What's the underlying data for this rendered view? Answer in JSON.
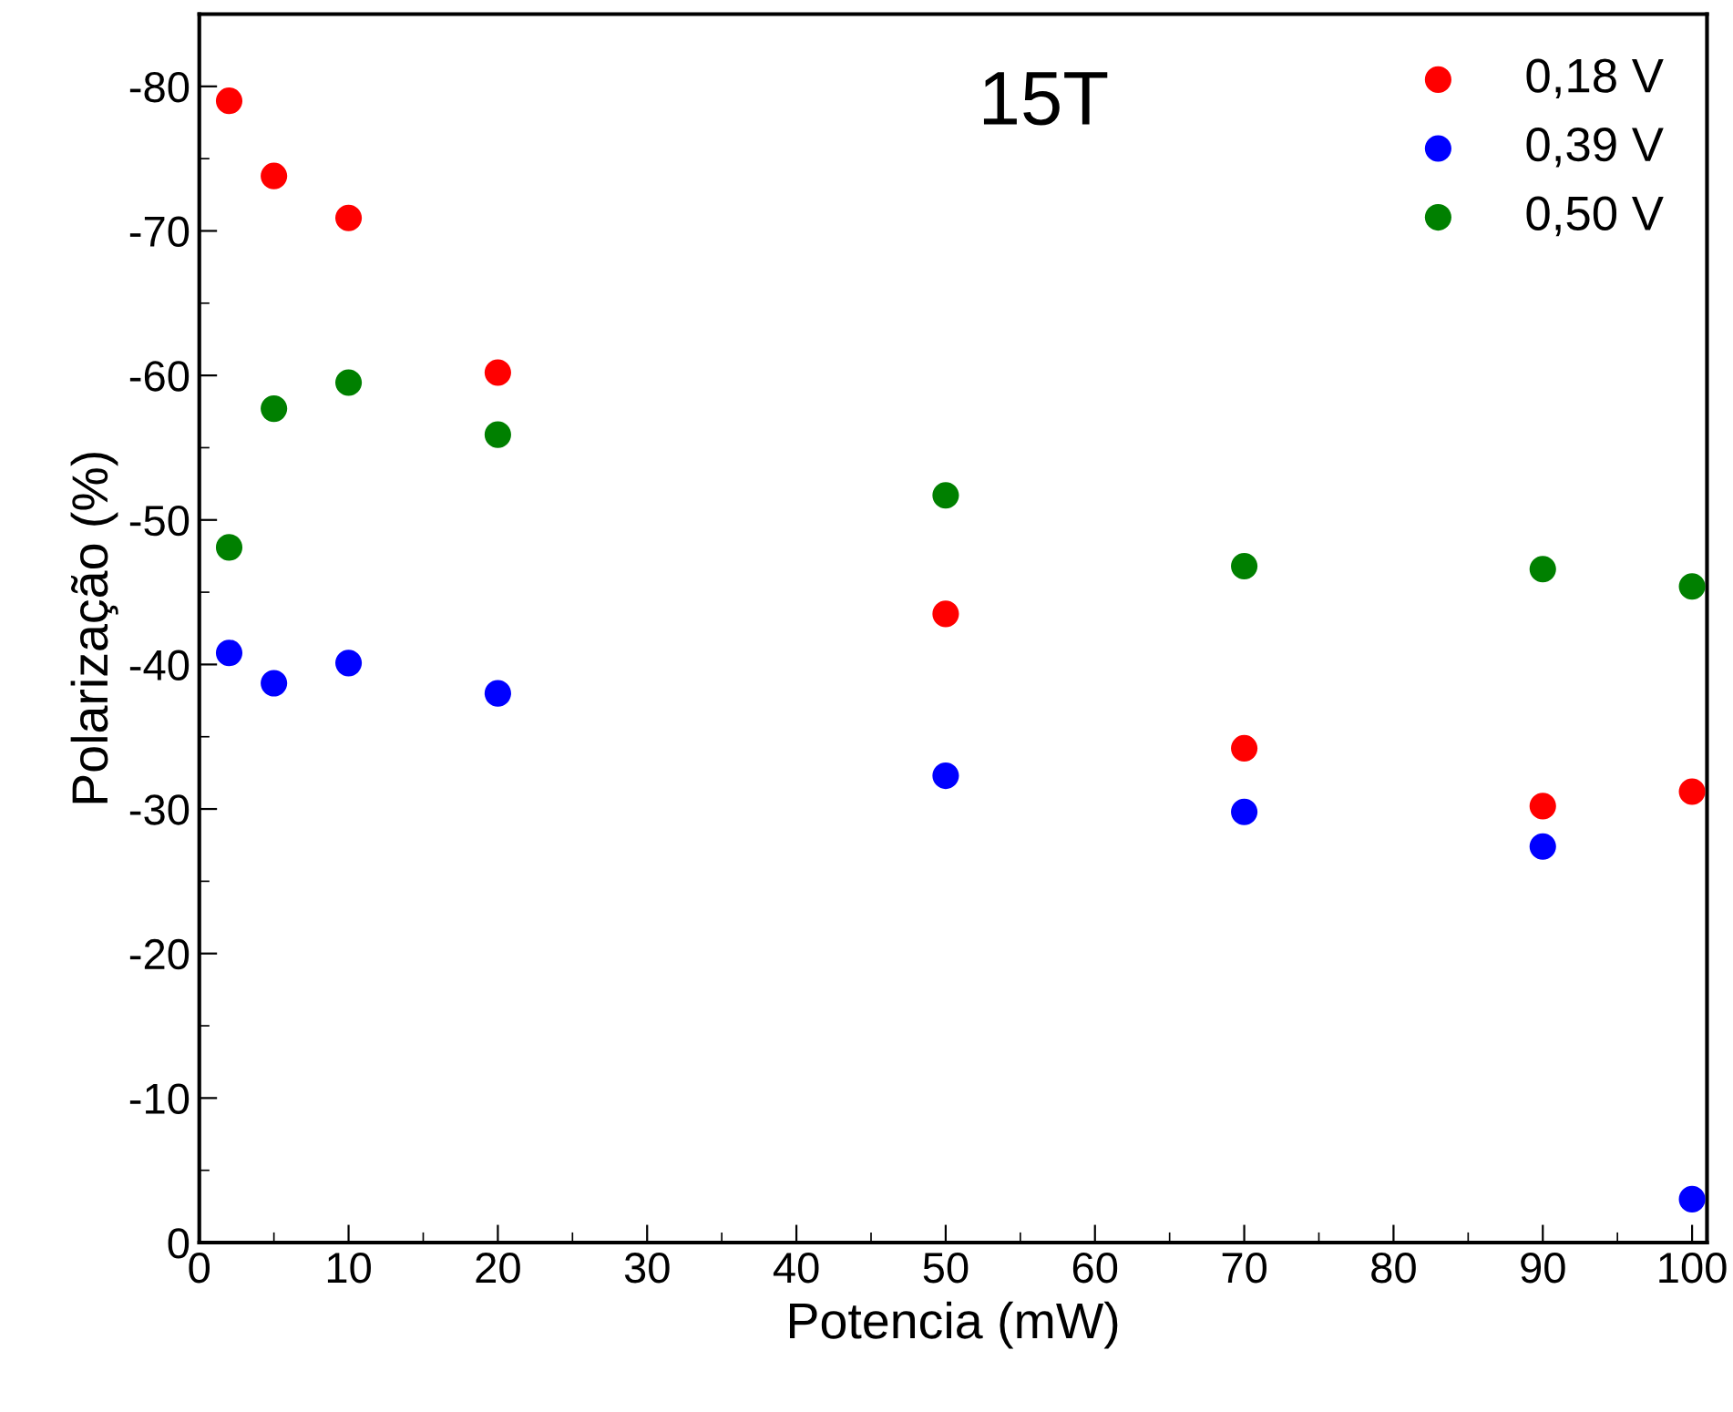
{
  "chart_data": {
    "type": "scatter",
    "title": "15T",
    "xlabel": "Potencia (mW)",
    "ylabel": "Polarização (%)",
    "x": [
      2,
      5,
      10,
      20,
      50,
      70,
      90,
      100
    ],
    "series": [
      {
        "name": "0,18 V",
        "color": "#ff0000",
        "values": [
          -79,
          -73.8,
          -70.9,
          -60.2,
          -43.5,
          -34.2,
          -30.2,
          -31.2
        ]
      },
      {
        "name": "0,39 V",
        "color": "#0000ff",
        "values": [
          -40.8,
          -38.7,
          -40.1,
          -38.0,
          -32.3,
          -29.8,
          -27.4,
          -3.0
        ]
      },
      {
        "name": "0,50 V",
        "color": "#008000",
        "values": [
          -48.1,
          -57.7,
          -59.5,
          -55.9,
          -51.7,
          -46.8,
          -46.6,
          -45.4
        ]
      }
    ],
    "xlim": [
      0,
      101
    ],
    "ylim": [
      0,
      -85
    ],
    "xticks": [
      0,
      10,
      20,
      30,
      40,
      50,
      60,
      70,
      80,
      90,
      100
    ],
    "yticks": [
      0,
      -10,
      -20,
      -30,
      -40,
      -50,
      -60,
      -70,
      -80
    ],
    "marker": "circle",
    "legend": "top right",
    "grid": false
  }
}
